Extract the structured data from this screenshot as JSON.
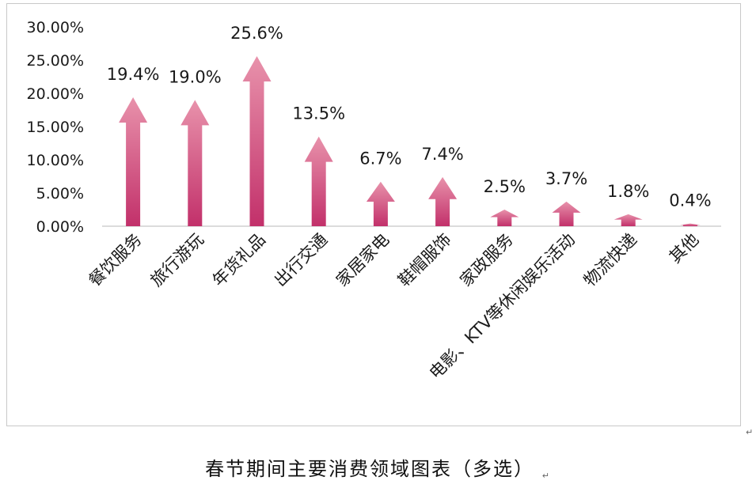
{
  "chart_data": {
    "type": "bar",
    "title": "",
    "xlabel": "",
    "ylabel": "",
    "categories": [
      "餐饮服务",
      "旅行游玩",
      "年货礼品",
      "出行交通",
      "家居家电",
      "鞋帽服饰",
      "家政服务",
      "电影、KTV等休闲娱乐活动",
      "物流快递",
      "其他"
    ],
    "values": [
      19.4,
      19.0,
      25.6,
      13.5,
      6.7,
      7.4,
      2.5,
      3.7,
      1.8,
      0.4
    ],
    "value_labels": [
      "19.4%",
      "19.0%",
      "25.6%",
      "13.5%",
      "6.7%",
      "7.4%",
      "2.5%",
      "3.7%",
      "1.8%",
      "0.4%"
    ],
    "y_ticks": [
      "0.00%",
      "5.00%",
      "10.00%",
      "15.00%",
      "20.00%",
      "25.00%",
      "30.00%"
    ],
    "ylim": [
      0,
      30
    ],
    "grid": false,
    "legend": "none",
    "colors": {
      "arrow_top": "#e892ab",
      "arrow_bottom": "#c2306a"
    }
  },
  "caption": "春节期间主要消费领域图表（多选）",
  "pilcrow": "↵"
}
